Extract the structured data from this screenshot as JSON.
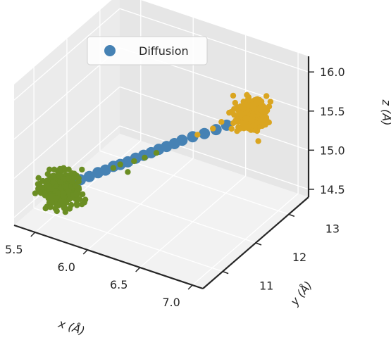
{
  "chart_data": {
    "type": "scatter",
    "projection": "3d",
    "title": "",
    "xlabel": "x (Å)",
    "ylabel": "y (Å)",
    "zlabel": "z (Å)",
    "xlim": [
      5.3,
      7.1
    ],
    "ylim": [
      10.4,
      13.6
    ],
    "zlim": [
      14.4,
      16.2
    ],
    "xticks": [
      "5.5",
      "6.0",
      "6.5",
      "7.0"
    ],
    "yticks": [
      "11",
      "12",
      "13"
    ],
    "zticks": [
      "14.5",
      "15.0",
      "15.5",
      "16.0"
    ],
    "grid": true,
    "legend": {
      "placement": "upper-left",
      "entries": [
        "Diffusion"
      ]
    },
    "colors": {
      "diffusion": "#4682b4",
      "cluster_start": "#6b8e23",
      "cluster_end": "#daa520",
      "pane": "#ebebeb",
      "grid": "#ffffff",
      "spine": "#262626"
    },
    "series": [
      {
        "name": "Diffusion",
        "color": "#4682b4",
        "points": [
          [
            5.55,
            11.05,
            14.78
          ],
          [
            5.62,
            11.12,
            14.82
          ],
          [
            5.68,
            11.2,
            14.86
          ],
          [
            5.74,
            11.28,
            14.9
          ],
          [
            5.8,
            11.35,
            14.95
          ],
          [
            5.85,
            11.42,
            14.98
          ],
          [
            5.9,
            11.5,
            15.02
          ],
          [
            5.95,
            11.55,
            15.05
          ],
          [
            6.0,
            11.62,
            15.08
          ],
          [
            6.05,
            11.7,
            15.12
          ],
          [
            6.1,
            11.78,
            15.15
          ],
          [
            6.15,
            11.85,
            15.18
          ],
          [
            6.2,
            11.92,
            15.22
          ],
          [
            6.25,
            12.0,
            15.25
          ],
          [
            6.3,
            12.08,
            15.28
          ],
          [
            6.35,
            12.15,
            15.32
          ],
          [
            6.42,
            12.25,
            15.36
          ],
          [
            6.5,
            12.35,
            15.4
          ],
          [
            6.58,
            12.45,
            15.45
          ],
          [
            6.65,
            12.55,
            15.5
          ]
        ]
      },
      {
        "name": "",
        "color": "#6b8e23",
        "cluster": {
          "center": [
            5.55,
            11.0,
            14.75
          ],
          "spread": [
            0.12,
            0.25,
            0.12
          ],
          "count": 260
        },
        "tail": [
          [
            5.95,
            11.55,
            15.05
          ],
          [
            6.05,
            11.65,
            15.1
          ],
          [
            6.12,
            11.75,
            15.14
          ],
          [
            6.2,
            11.85,
            15.2
          ],
          [
            5.9,
            11.5,
            15.0
          ],
          [
            6.0,
            11.62,
            14.95
          ]
        ]
      },
      {
        "name": "",
        "color": "#daa520",
        "cluster": {
          "center": [
            6.8,
            12.8,
            15.62
          ],
          "spread": [
            0.1,
            0.22,
            0.1
          ],
          "count": 260
        },
        "tail": [
          [
            6.45,
            12.3,
            15.38
          ],
          [
            6.55,
            12.45,
            15.45
          ],
          [
            6.6,
            12.55,
            15.52
          ]
        ]
      }
    ]
  }
}
